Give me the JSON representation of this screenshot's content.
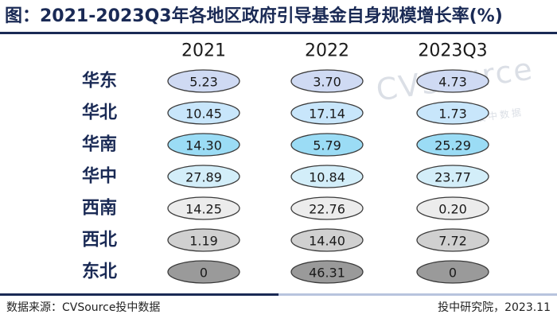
{
  "title": "图：2021-2023Q3年各地区政府引导基金自身规模增长率(%)",
  "watermark": {
    "main": "CVSource",
    "sub": "投中数据"
  },
  "footer": {
    "source": "数据来源：CVSource投中数据",
    "credit": "投中研究院，2023.11"
  },
  "colors": {
    "title": "#1a2a55",
    "rule_dark": "#1a2a55",
    "rule_light": "#b8c4de",
    "row_fills": [
      "#cfdaf3",
      "#c8e6fb",
      "#9bdcf5",
      "#d3eef9",
      "#ececec",
      "#d0d0d0",
      "#9a9a9a"
    ]
  },
  "chart_data": {
    "type": "table",
    "columns": [
      "2021",
      "2022",
      "2023Q3"
    ],
    "rows": [
      {
        "region": "华东",
        "values": [
          "5.23",
          "3.70",
          "4.73"
        ]
      },
      {
        "region": "华北",
        "values": [
          "10.45",
          "17.14",
          "1.73"
        ]
      },
      {
        "region": "华南",
        "values": [
          "14.30",
          "5.79",
          "25.29"
        ]
      },
      {
        "region": "华中",
        "values": [
          "27.89",
          "10.84",
          "23.77"
        ]
      },
      {
        "region": "西南",
        "values": [
          "14.25",
          "22.76",
          "0.20"
        ]
      },
      {
        "region": "西北",
        "values": [
          "1.19",
          "14.40",
          "7.72"
        ]
      },
      {
        "region": "东北",
        "values": [
          "0",
          "46.31",
          "0"
        ]
      }
    ]
  }
}
